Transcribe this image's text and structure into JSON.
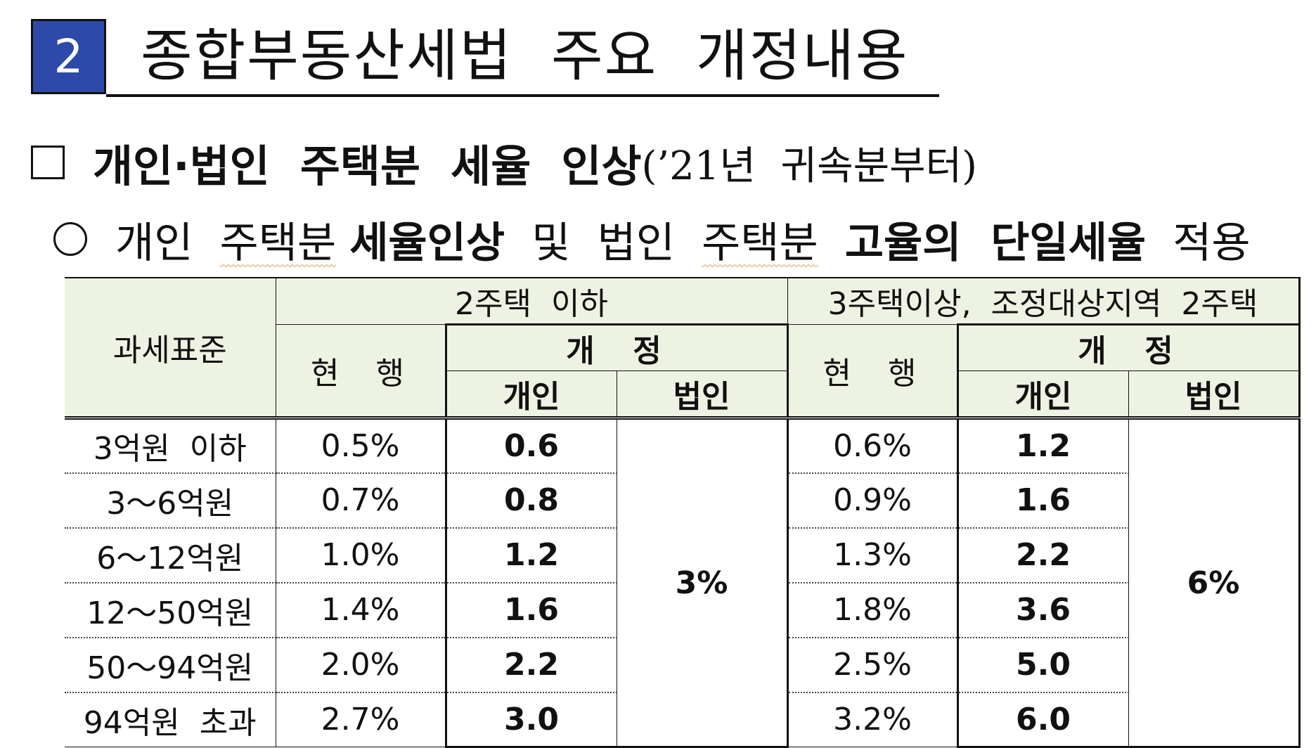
{
  "title": {
    "number": "2",
    "text": "종합부동산세법  주요  개정내용"
  },
  "heading": {
    "bold": "개인·법인  주택분  세율  인상",
    "suffix": "(’21년  귀속분부터)"
  },
  "subheading": {
    "p1": "개인  ",
    "p2": "주택분",
    "p3": " ",
    "p4": "세율인상",
    "p5": "  및  법인  ",
    "p6": "주택분",
    "p7": "  ",
    "p8": "고율의  단일세율",
    "p9": "  적용"
  },
  "table": {
    "col_tax_base": "과세표준",
    "group1": "2주택  이하",
    "group2": "3주택이상,  조정대상지역  2주택",
    "current": "현  행",
    "revised": "개  정",
    "individual": "개인",
    "corporate": "법인",
    "corporate_rate_group1": "3%",
    "corporate_rate_group2": "6%",
    "rows": [
      {
        "base": "3억원  이하",
        "cur1": "0.5%",
        "ind1": "0.6",
        "cur2": "0.6%",
        "ind2": "1.2"
      },
      {
        "base": "3～6억원",
        "cur1": "0.7%",
        "ind1": "0.8",
        "cur2": "0.9%",
        "ind2": "1.6"
      },
      {
        "base": "6～12억원",
        "cur1": "1.0%",
        "ind1": "1.2",
        "cur2": "1.3%",
        "ind2": "2.2"
      },
      {
        "base": "12～50억원",
        "cur1": "1.4%",
        "ind1": "1.6",
        "cur2": "1.8%",
        "ind2": "3.6"
      },
      {
        "base": "50～94억원",
        "cur1": "2.0%",
        "ind1": "2.2",
        "cur2": "2.5%",
        "ind2": "5.0"
      },
      {
        "base": "94억원  초과",
        "cur1": "2.7%",
        "ind1": "3.0",
        "cur2": "3.2%",
        "ind2": "6.0"
      }
    ]
  }
}
